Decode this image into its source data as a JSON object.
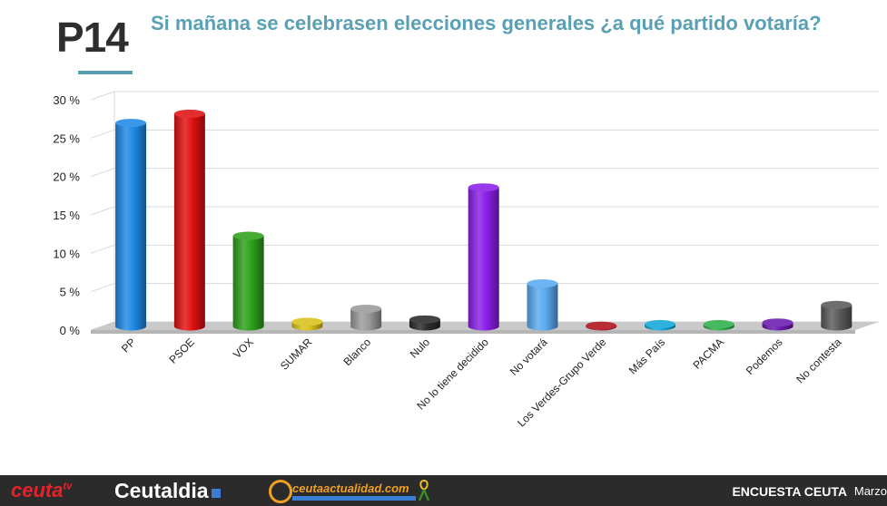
{
  "header": {
    "question_number": "P14",
    "title": "Si mañana se celebrasen elecciones generales ¿a qué partido votaría?"
  },
  "chart_data": {
    "type": "bar",
    "categories": [
      "PP",
      "PSOE",
      "VOX",
      "SUMAR",
      "Blanco",
      "Nulo",
      "No lo tiene decidido",
      "No votará",
      "Los Verdes-Grupo Verde",
      "Más País",
      "PACMA",
      "Podemos",
      "No contesta"
    ],
    "values": [
      26.5,
      27.7,
      11.8,
      0.6,
      2.3,
      0.9,
      18.1,
      5.6,
      0.1,
      0.3,
      0.3,
      0.5,
      2.8
    ],
    "colors": [
      "#1e88e5",
      "#e01010",
      "#2ea01a",
      "#d8c21a",
      "#9a9a9a",
      "#2a2a2a",
      "#8a1ee8",
      "#5aaaf0",
      "#b0101c",
      "#12a8d8",
      "#2eb04a",
      "#6a1ab0",
      "#5a5a5a"
    ],
    "ylim": [
      0,
      30
    ],
    "yticks": [
      "0 %",
      "5 %",
      "10 %",
      "15 %",
      "20 %",
      "25 %",
      "30 %"
    ],
    "grid": true,
    "style": "3d-cylinder"
  },
  "footer": {
    "brand1": "ceuta",
    "brand1_sup": "tv",
    "brand2": "Ceutaldia",
    "brand3": "ceutaactualidad.com",
    "survey_label": "ENCUESTA CEUTA",
    "month": "Marzo"
  }
}
